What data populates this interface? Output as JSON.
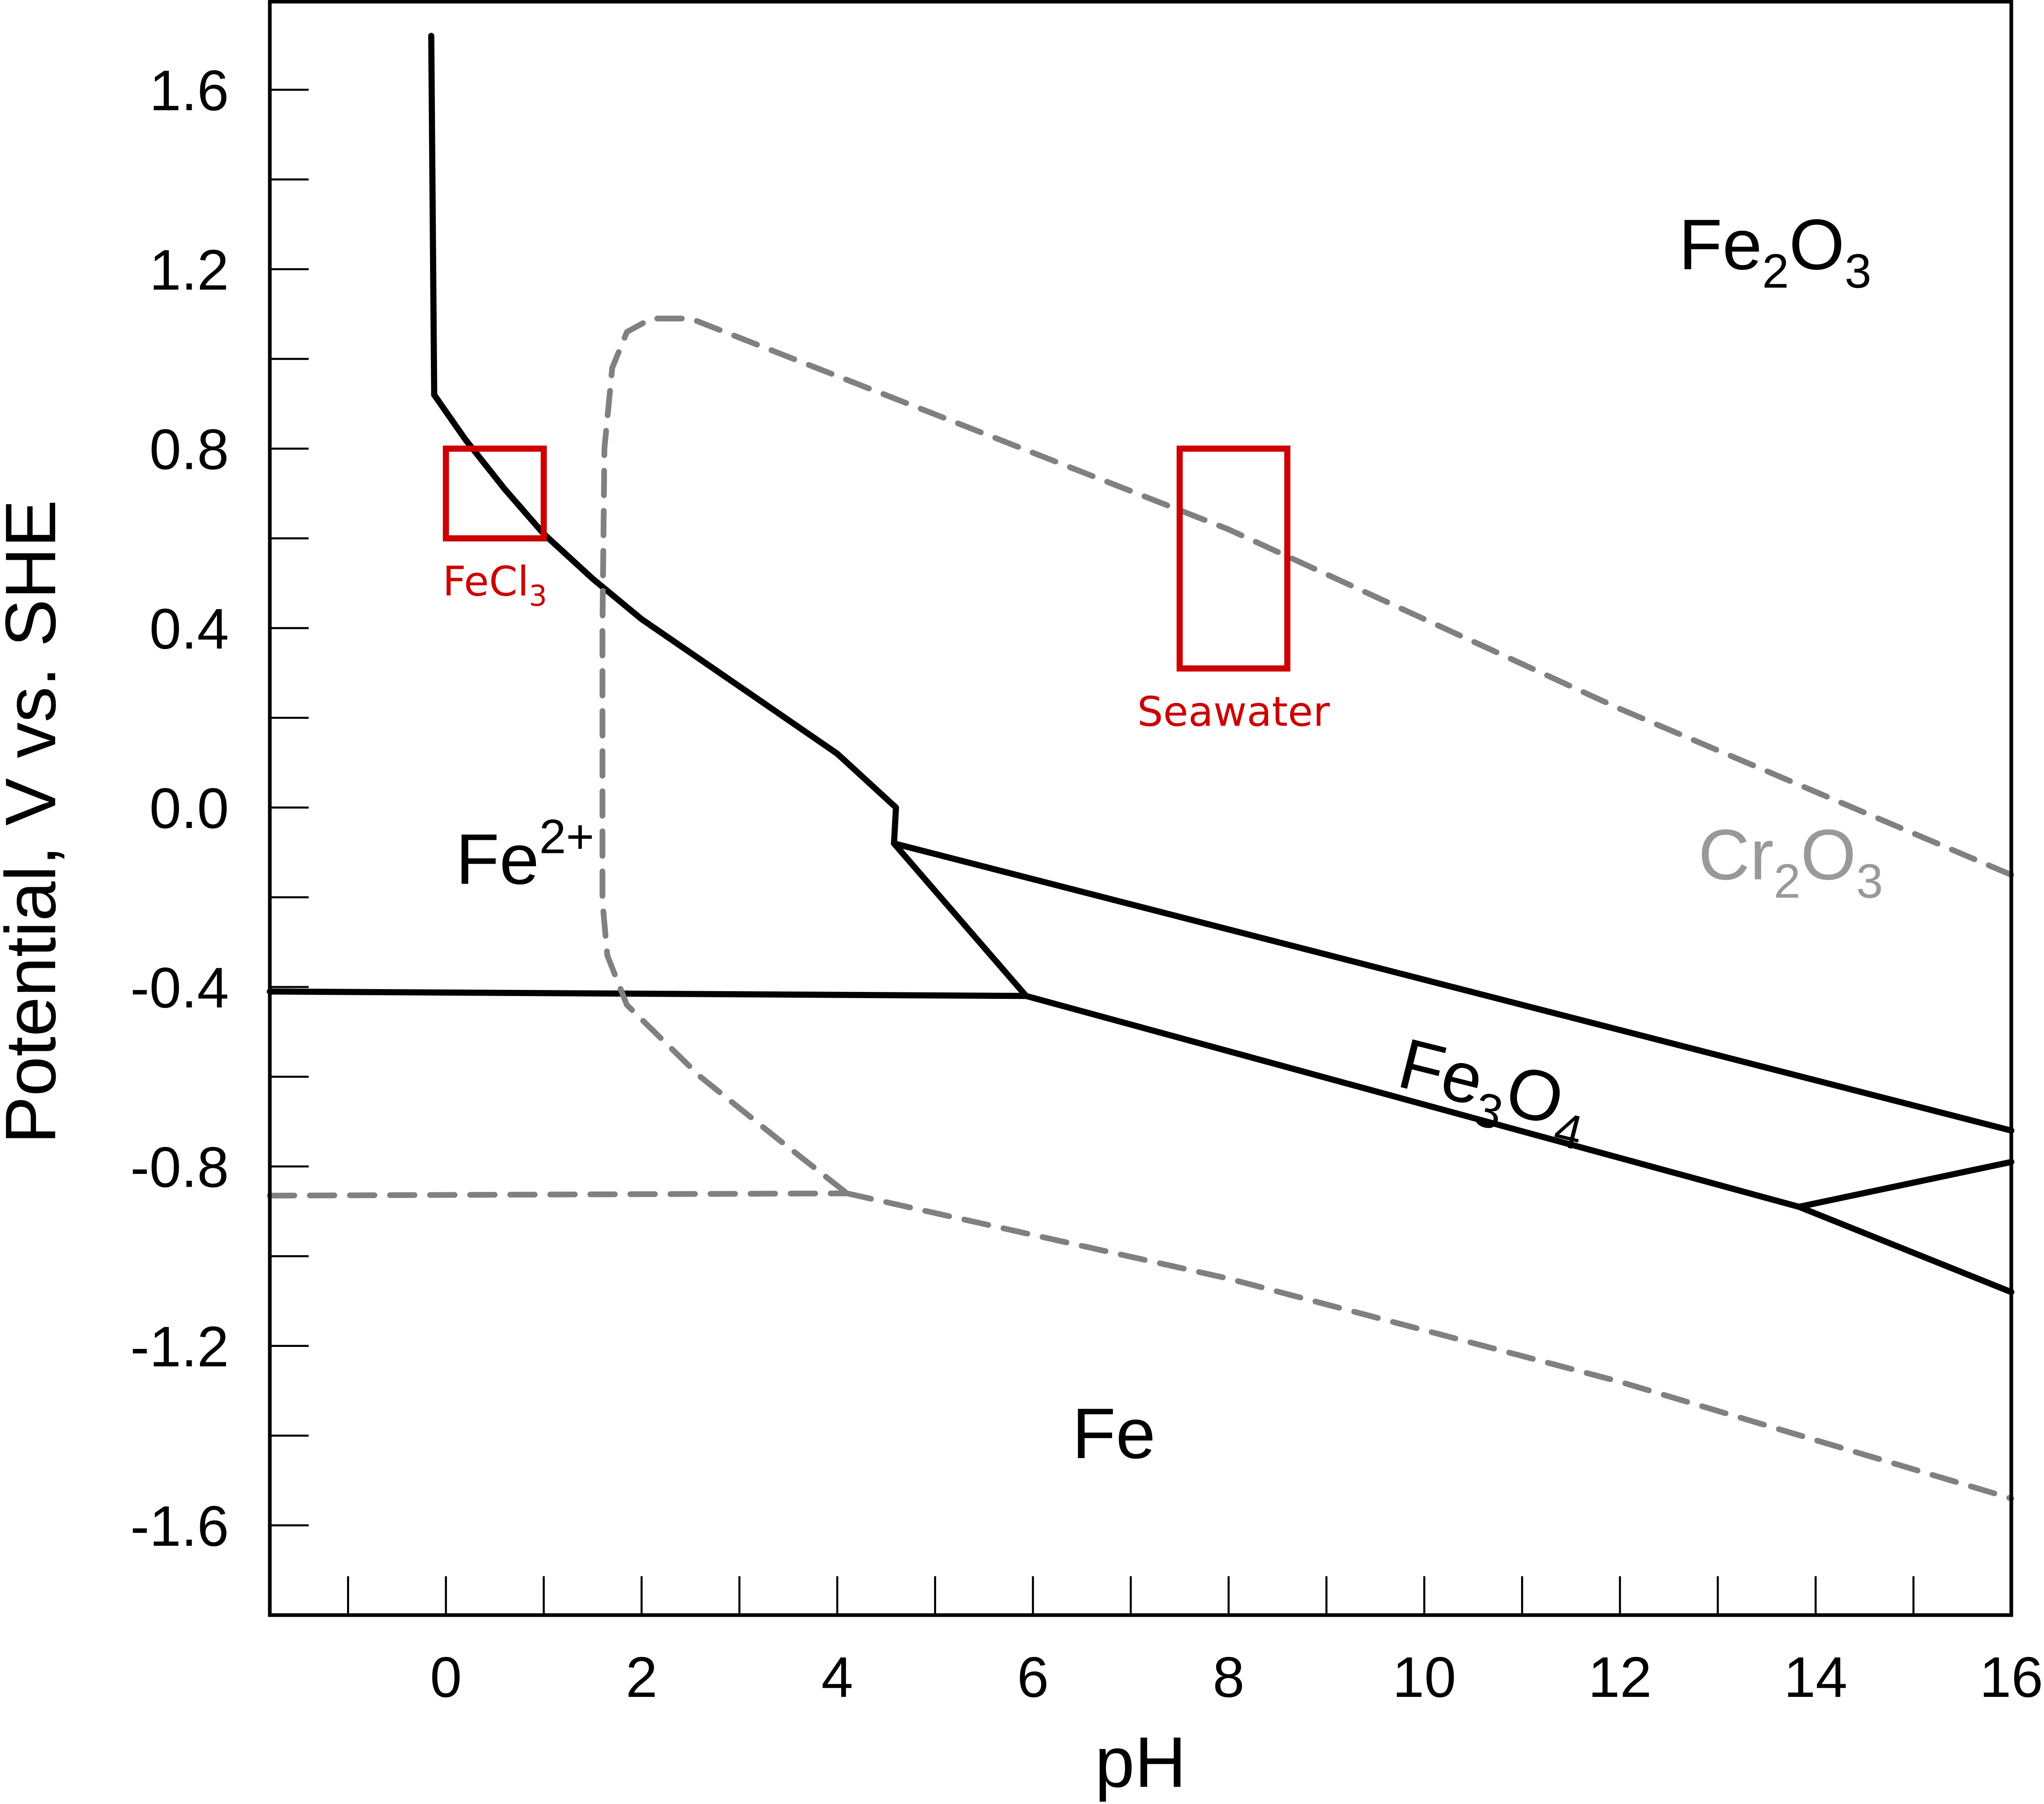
{
  "chart_data": {
    "type": "line",
    "xlabel": "pH",
    "ylabel": "Potential, V vs. SHE",
    "xlim": [
      -1.8,
      16
    ],
    "ylim": [
      -1.8,
      1.8
    ],
    "x_ticks_major": [
      0,
      2,
      4,
      6,
      8,
      10,
      12,
      14,
      16
    ],
    "x_ticks_minor": [
      -1,
      1,
      3,
      5,
      7,
      9,
      11,
      13,
      15
    ],
    "y_ticks_major": [
      -1.6,
      -1.2,
      -0.8,
      -0.4,
      0.0,
      0.4,
      0.8,
      1.2,
      1.6
    ],
    "y_ticks_minor": [
      -1.4,
      -1.0,
      -0.6,
      -0.2,
      0.2,
      0.6,
      1.0,
      1.4
    ],
    "x_tick_labels": [
      "0",
      "2",
      "4",
      "6",
      "8",
      "10",
      "12",
      "14",
      "16"
    ],
    "y_tick_labels": [
      "-1.6",
      "-1.2",
      "-0.8",
      "-0.4",
      "0.0",
      "0.4",
      "0.8",
      "1.2",
      "1.6"
    ],
    "grid": false,
    "colors": {
      "fe_lines": "#000000",
      "cr_lines": "#808080",
      "regions": "#cc0000"
    },
    "series": [
      {
        "system": "Fe",
        "style": "solid",
        "points": [
          [
            -0.15,
            1.72
          ],
          [
            -0.12,
            0.92
          ]
        ]
      },
      {
        "system": "Fe",
        "style": "solid",
        "points": [
          [
            -0.12,
            0.92
          ],
          [
            0.2,
            0.82
          ],
          [
            0.6,
            0.71
          ],
          [
            1.0,
            0.61
          ],
          [
            1.5,
            0.51
          ],
          [
            2.0,
            0.42
          ],
          [
            3.0,
            0.27
          ],
          [
            4.0,
            0.12
          ],
          [
            4.6,
            0.0
          ],
          [
            4.58,
            -0.08
          ]
        ]
      },
      {
        "system": "Fe",
        "style": "solid",
        "points": [
          [
            4.58,
            -0.08
          ],
          [
            5.93,
            -0.42
          ]
        ]
      },
      {
        "system": "Fe",
        "style": "solid",
        "points": [
          [
            -1.8,
            -0.41
          ],
          [
            5.93,
            -0.42
          ]
        ]
      },
      {
        "system": "Fe",
        "style": "solid",
        "points": [
          [
            4.58,
            -0.08
          ],
          [
            16.0,
            -0.72
          ]
        ]
      },
      {
        "system": "Fe",
        "style": "solid",
        "points": [
          [
            5.93,
            -0.42
          ],
          [
            13.83,
            -0.89
          ]
        ]
      },
      {
        "system": "Fe",
        "style": "solid",
        "points": [
          [
            13.83,
            -0.89
          ],
          [
            16.0,
            -0.79
          ]
        ]
      },
      {
        "system": "Fe",
        "style": "solid",
        "points": [
          [
            13.83,
            -0.89
          ],
          [
            16.0,
            -1.08
          ]
        ]
      },
      {
        "system": "Cr",
        "style": "dashed",
        "points": [
          [
            16.0,
            -0.15
          ],
          [
            12.0,
            0.22
          ],
          [
            8.0,
            0.62
          ],
          [
            2.5,
            1.09
          ],
          [
            2.1,
            1.09
          ],
          [
            1.85,
            1.06
          ],
          [
            1.7,
            0.98
          ],
          [
            1.62,
            0.8
          ],
          [
            1.6,
            0.4
          ],
          [
            1.6,
            0.0
          ],
          [
            1.6,
            -0.21
          ],
          [
            1.65,
            -0.33
          ],
          [
            1.85,
            -0.44
          ],
          [
            2.6,
            -0.6
          ],
          [
            3.4,
            -0.74
          ],
          [
            4.1,
            -0.86
          ]
        ]
      },
      {
        "system": "Cr",
        "style": "dashed",
        "points": [
          [
            -1.8,
            -0.865
          ],
          [
            4.1,
            -0.86
          ]
        ]
      },
      {
        "system": "Cr",
        "style": "dashed",
        "points": [
          [
            4.1,
            -0.86
          ],
          [
            8.0,
            -1.05
          ],
          [
            12.0,
            -1.28
          ],
          [
            16.0,
            -1.54
          ]
        ]
      }
    ],
    "regions": [
      {
        "label": "FeCl",
        "sub": "3",
        "x": [
          0.0,
          1.0
        ],
        "y": [
          0.6,
          0.8
        ]
      },
      {
        "label": "Seawater",
        "sub": "",
        "x": [
          7.5,
          8.6
        ],
        "y": [
          0.31,
          0.8
        ]
      }
    ],
    "annotations": [
      {
        "parts": [
          [
            "Fe",
            ""
          ],
          [
            "2",
            "sub"
          ],
          [
            "O",
            ""
          ],
          [
            "3",
            "sub"
          ]
        ],
        "x": 12.6,
        "y": 1.2,
        "color": "#000000"
      },
      {
        "parts": [
          [
            "Fe",
            ""
          ],
          [
            "2+",
            "sup"
          ]
        ],
        "x": 0.1,
        "y": -0.17,
        "color": "#000000"
      },
      {
        "parts": [
          [
            "Cr",
            ""
          ],
          [
            "2",
            "sub"
          ],
          [
            "O",
            ""
          ],
          [
            "3",
            "sub"
          ]
        ],
        "x": 12.8,
        "y": -0.16,
        "color": "#999999"
      },
      {
        "parts": [
          [
            "Fe",
            ""
          ],
          [
            "3",
            "sub"
          ],
          [
            "O",
            ""
          ],
          [
            "4",
            "sub"
          ]
        ],
        "x": 9.7,
        "y": -0.62,
        "color": "#000000",
        "rotate": 14
      },
      {
        "parts": [
          [
            "Fe",
            ""
          ]
        ],
        "x": 6.4,
        "y": -1.45,
        "color": "#000000"
      }
    ]
  }
}
